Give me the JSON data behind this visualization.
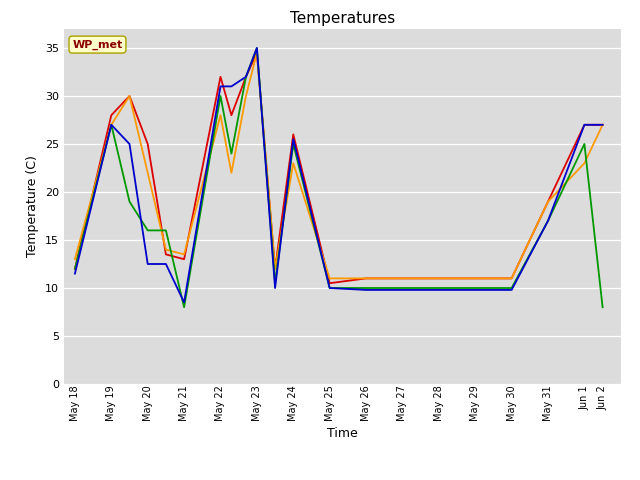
{
  "title": "Temperatures",
  "xlabel": "Time",
  "ylabel": "Temperature (C)",
  "annotation": "WP_met",
  "plot_bg_color": "#dcdcdc",
  "fig_bg_color": "#ffffff",
  "ylim": [
    0,
    37
  ],
  "yticks": [
    0,
    5,
    10,
    15,
    20,
    25,
    30,
    35
  ],
  "series": {
    "CR1000 panelT": {
      "color": "#dd0000",
      "x": [
        0,
        1,
        1.5,
        2,
        2.5,
        3,
        4,
        4.3,
        4.7,
        5,
        5.5,
        6,
        7,
        8,
        9,
        10,
        11,
        12,
        13,
        14,
        14.5
      ],
      "y": [
        12,
        28,
        30,
        25,
        13.5,
        13,
        32,
        28,
        32,
        34.5,
        12,
        26,
        10.5,
        11,
        11,
        11,
        11,
        11,
        19,
        27,
        27
      ]
    },
    "HMP": {
      "color": "#ff9900",
      "x": [
        0,
        1,
        1.5,
        2,
        2.5,
        3,
        4,
        4.3,
        4.7,
        5,
        5.5,
        6,
        7,
        8,
        9,
        10,
        11,
        12,
        13,
        14,
        14.5
      ],
      "y": [
        13,
        27,
        30,
        22,
        14,
        13.5,
        28,
        22,
        30,
        34.5,
        12,
        23,
        11,
        11,
        11,
        11,
        11,
        11,
        19,
        23,
        27
      ]
    },
    "NR01 PRT": {
      "color": "#009900",
      "x": [
        0,
        1,
        1.5,
        2,
        2.5,
        3,
        4,
        4.3,
        4.7,
        5,
        5.5,
        6,
        7,
        8,
        9,
        10,
        11,
        12,
        13,
        14,
        14.5
      ],
      "y": [
        12,
        27,
        19,
        16,
        16,
        8,
        30,
        24,
        32,
        35,
        10.5,
        25,
        10,
        10,
        10,
        10,
        10,
        10,
        17,
        25,
        8
      ]
    },
    "AM25T PRT": {
      "color": "#0000cc",
      "x": [
        0,
        1,
        1.5,
        2,
        2.5,
        3,
        4,
        4.3,
        4.7,
        5,
        5.5,
        6,
        7,
        8,
        9,
        10,
        11,
        12,
        13,
        14,
        14.5
      ],
      "y": [
        11.5,
        27,
        25,
        12.5,
        12.5,
        8.5,
        31,
        31,
        32,
        35,
        10,
        25.5,
        10,
        9.8,
        9.8,
        9.8,
        9.8,
        9.8,
        17,
        27,
        27
      ]
    }
  },
  "xtick_positions": [
    0,
    1,
    2,
    3,
    4,
    5,
    6,
    7,
    8,
    9,
    10,
    11,
    12,
    13,
    14,
    14.5
  ],
  "xtick_labels": [
    "May 18",
    "May 19",
    "May 20",
    "May 21",
    "May 22",
    "May 23",
    "May 24",
    "May 25",
    "May 26",
    "May 27",
    "May 28",
    "May 29",
    "May 30",
    "May 31",
    "Jun 1",
    "Jun 2"
  ],
  "xlim": [
    -0.3,
    15.0
  ],
  "linewidth": 1.3
}
